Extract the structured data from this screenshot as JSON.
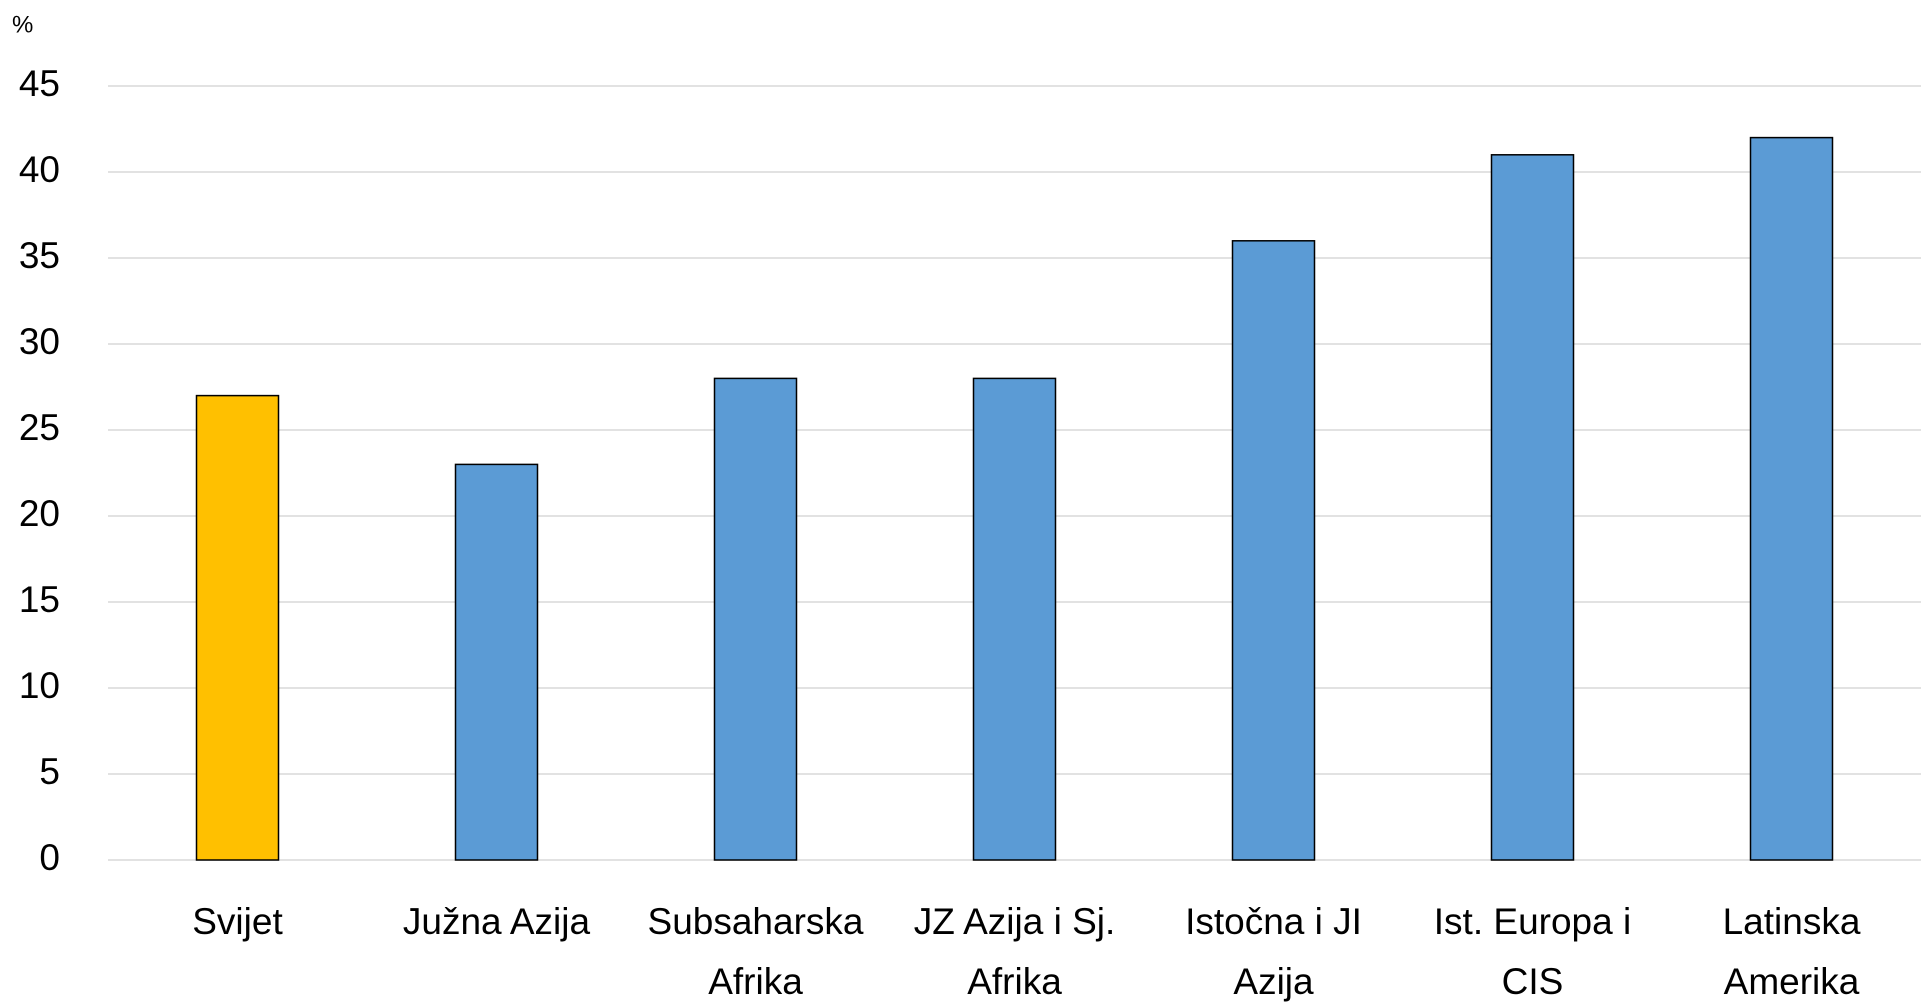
{
  "chart_data": {
    "type": "bar",
    "ylabel": "%",
    "categories": [
      "Svijet",
      "Južna Azija",
      "Subsaharska\nAfrika",
      "JZ Azija i Sj.\nAfrika",
      "Istočna i JI\nAzija",
      "Ist. Europa i\nCIS",
      "Latinska\nAmerika"
    ],
    "values": [
      27,
      23,
      28,
      28,
      36,
      41,
      42
    ],
    "colors": [
      "#ffc000",
      "#5b9bd5",
      "#5b9bd5",
      "#5b9bd5",
      "#5b9bd5",
      "#5b9bd5",
      "#5b9bd5"
    ],
    "ylim": [
      0,
      45
    ],
    "yticks": [
      0,
      5,
      10,
      15,
      20,
      25,
      30,
      35,
      40,
      45
    ],
    "grid": true
  }
}
